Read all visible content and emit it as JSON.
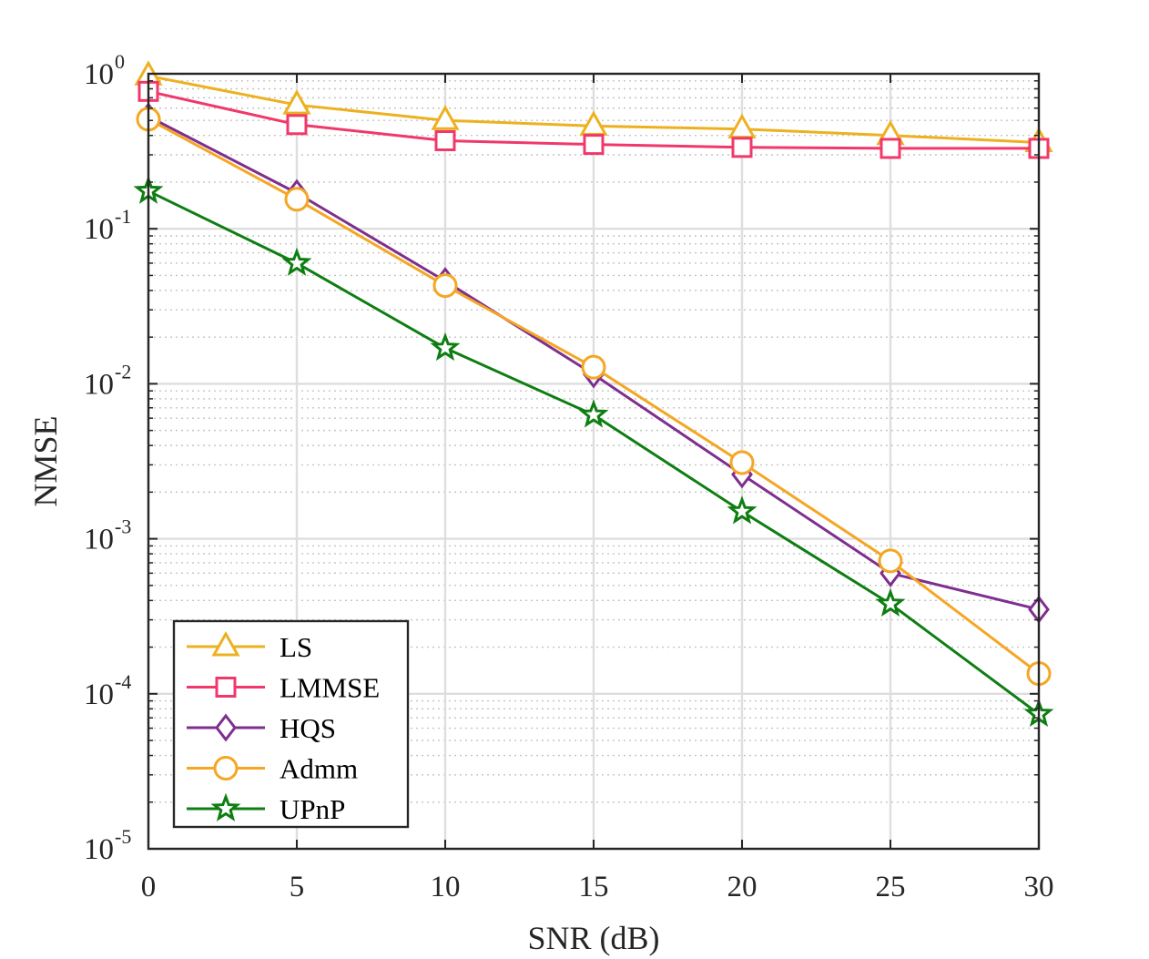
{
  "chart_data": {
    "type": "line",
    "title": "",
    "xlabel": "SNR (dB)",
    "ylabel": "NMSE",
    "xscale": "linear",
    "yscale": "log",
    "xlim": [
      0,
      30
    ],
    "ylim": [
      1e-05,
      1
    ],
    "grid": true,
    "minor_grid": true,
    "legend_position": "bottom-left",
    "x": [
      0,
      5,
      10,
      15,
      20,
      25,
      30
    ],
    "x_ticks": [
      "0",
      "5",
      "10",
      "15",
      "20",
      "25",
      "30"
    ],
    "y_ticks": [
      {
        "base": "10",
        "exp": "0",
        "value": 1
      },
      {
        "base": "10",
        "exp": "-1",
        "value": 0.1
      },
      {
        "base": "10",
        "exp": "-2",
        "value": 0.01
      },
      {
        "base": "10",
        "exp": "-3",
        "value": 0.001
      },
      {
        "base": "10",
        "exp": "-4",
        "value": 0.0001
      },
      {
        "base": "10",
        "exp": "-5",
        "value": 1e-05
      }
    ],
    "series": [
      {
        "name": "LS",
        "color": "#EDB120",
        "marker": "triangle",
        "values": [
          0.97,
          0.63,
          0.5,
          0.46,
          0.44,
          0.4,
          0.36
        ]
      },
      {
        "name": "LMMSE",
        "color": "#F0386B",
        "marker": "square",
        "values": [
          0.77,
          0.47,
          0.37,
          0.35,
          0.335,
          0.33,
          0.33
        ]
      },
      {
        "name": "HQS",
        "color": "#7E2F8E",
        "marker": "diamond",
        "values": [
          0.53,
          0.17,
          0.046,
          0.0115,
          0.0026,
          0.0006,
          0.00035
        ]
      },
      {
        "name": "Admm",
        "color": "#F5A623",
        "marker": "circle",
        "values": [
          0.51,
          0.155,
          0.043,
          0.0128,
          0.0031,
          0.00072,
          0.000135
        ]
      },
      {
        "name": "UPnP",
        "color": "#0E7E12",
        "marker": "star",
        "values": [
          0.175,
          0.06,
          0.017,
          0.0063,
          0.0015,
          0.00038,
          7.4e-05
        ]
      }
    ]
  }
}
